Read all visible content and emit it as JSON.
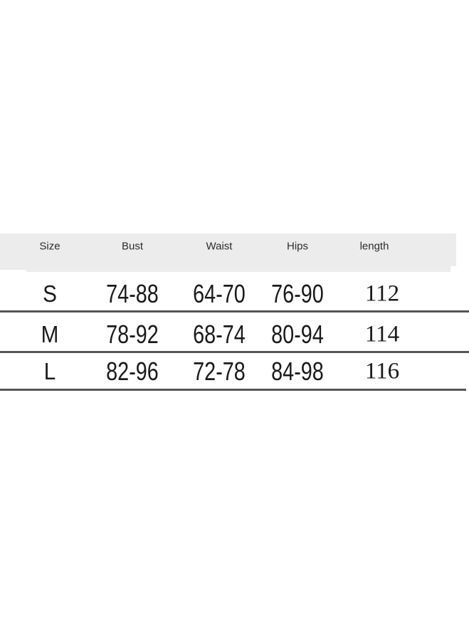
{
  "chart_data": {
    "type": "table",
    "columns": [
      "Size",
      "Bust",
      "Waist",
      "Hips",
      "length"
    ],
    "rows": [
      [
        "S",
        "74-88",
        "64-70",
        "76-90",
        "112"
      ],
      [
        "M",
        "78-92",
        "68-74",
        "80-94",
        "114"
      ],
      [
        "L",
        "82-96",
        "72-78",
        "84-98",
        "116"
      ]
    ],
    "layout": {
      "header_background": "#ececec",
      "rule_color": "#555555",
      "text_color": "#1a1a1a",
      "grid": "horizontal-rules-only",
      "legend": "none"
    }
  }
}
